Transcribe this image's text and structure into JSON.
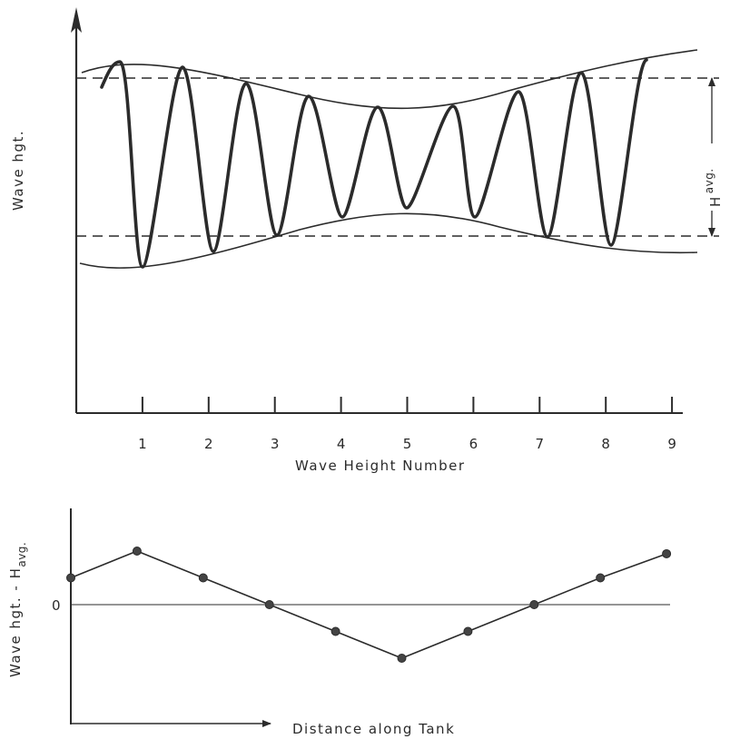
{
  "chart_data": [
    {
      "type": "line",
      "ylabel": "Wave hgt.",
      "xlabel": "Wave Height Number",
      "x_ticks": [
        "1",
        "2",
        "3",
        "4",
        "5",
        "6",
        "7",
        "8",
        "9"
      ],
      "annotation": {
        "main": "H",
        "subscript": "avg."
      },
      "reference_lines": [
        "upper dashed line",
        "lower dashed line"
      ],
      "wave_heights_relative": [
        1.02,
        1.12,
        1.05,
        0.98,
        0.93,
        0.84,
        0.93,
        1.01,
        1.06,
        1.14
      ]
    },
    {
      "type": "line",
      "ylabel_main": "Wave hgt. - H",
      "ylabel_sub": "avg.",
      "xlabel": "Distance along Tank",
      "y_zero_label": "0",
      "x": [
        0,
        1,
        2,
        3,
        4,
        5,
        6,
        7,
        8,
        9
      ],
      "values": [
        0.5,
        1.0,
        0.5,
        0.0,
        -0.5,
        -1.0,
        -0.5,
        0.0,
        0.5,
        0.95
      ]
    }
  ],
  "colors": {
    "ink": "#2b2b2b",
    "paper": "#ffffff"
  }
}
